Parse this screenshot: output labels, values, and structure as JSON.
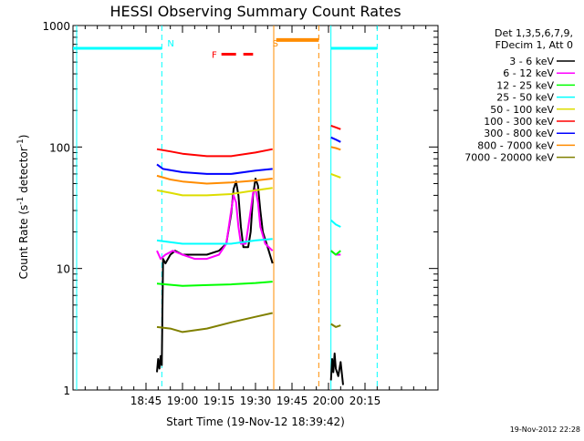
{
  "chart_data": {
    "type": "line",
    "title": "HESSI Observing Summary Count Rates",
    "xlabel": "Start Time (19-Nov-12 18:39:42)",
    "ylabel": "Count Rate (s⁻¹ detector⁻¹)",
    "ylabel_parts": {
      "main": "Count Rate (s",
      "sup1": "-1",
      "mid": " detector",
      "sup2": "-1",
      "end": ")"
    },
    "x_range_min": [
      -45,
      105
    ],
    "x_ticks": [
      {
        "t": -15,
        "label": "18:45"
      },
      {
        "t": 0,
        "label": "19:00"
      },
      {
        "t": 15,
        "label": "19:15"
      },
      {
        "t": 30,
        "label": "19:30"
      },
      {
        "t": 45,
        "label": "19:45"
      },
      {
        "t": 60,
        "label": "20:00"
      },
      {
        "t": 75,
        "label": "20:15"
      }
    ],
    "y_scale": "log",
    "ylim": [
      1,
      1000
    ],
    "y_ticks": [
      {
        "v": 1,
        "label": "1"
      },
      {
        "v": 10,
        "label": "10"
      },
      {
        "v": 100,
        "label": "100"
      },
      {
        "v": 1000,
        "label": "1000"
      }
    ],
    "legend_header": [
      "Det 1,3,5,6,7,9,",
      "FDecim 1, Att 0"
    ],
    "legend_position": "right",
    "timestamp": "19-Nov-2012 22:28",
    "annotations": [
      {
        "label": "N",
        "t": -8.5,
        "color": "#00ffff"
      },
      {
        "label": "F",
        "t": 12,
        "color": "#ff0000"
      },
      {
        "label": "S",
        "t": 37,
        "color": "#ff8c00"
      }
    ],
    "night_bars": [
      [
        -45,
        -8.5
      ],
      [
        61,
        80
      ]
    ],
    "flare_bar": [
      16,
      29
    ],
    "saa_bar": [
      38.5,
      56
    ],
    "saa_dashes": [
      56
    ],
    "night_dashes": [
      -8.5,
      80
    ],
    "solid_markers": [
      {
        "t": -43.5,
        "color": "#00ffff"
      },
      {
        "t": 37.5,
        "color": "#ff8c00"
      },
      {
        "t": 61,
        "color": "#00ffff"
      }
    ],
    "series": [
      {
        "name": "3 - 6 keV",
        "color": "#000000",
        "segments": [
          [
            [
              -10.5,
              1.4
            ],
            [
              -10,
              1.8
            ],
            [
              -9.5,
              1.5
            ],
            [
              -9,
              1.9
            ],
            [
              -8.5,
              1.6
            ],
            [
              -8,
              12
            ],
            [
              -7,
              11
            ],
            [
              -5,
              13
            ],
            [
              -3,
              14
            ],
            [
              0,
              13
            ],
            [
              5,
              13
            ],
            [
              10,
              13
            ],
            [
              15,
              14
            ],
            [
              18,
              16
            ],
            [
              20,
              28
            ],
            [
              21,
              45
            ],
            [
              22,
              52
            ],
            [
              23,
              40
            ],
            [
              24,
              22
            ],
            [
              25,
              15
            ],
            [
              27,
              15
            ],
            [
              28,
              20
            ],
            [
              29,
              40
            ],
            [
              30,
              55
            ],
            [
              31,
              48
            ],
            [
              32,
              30
            ],
            [
              33,
              20
            ],
            [
              35,
              15
            ],
            [
              37,
              11
            ]
          ],
          [
            [
              61,
              1.2
            ],
            [
              61.5,
              1.8
            ],
            [
              62,
              1.4
            ],
            [
              62.5,
              2.0
            ],
            [
              63,
              1.5
            ],
            [
              64,
              1.3
            ],
            [
              65,
              1.7
            ],
            [
              66,
              1.1
            ]
          ]
        ]
      },
      {
        "name": "6 - 12 keV",
        "color": "#ff00ff",
        "segments": [
          [
            [
              -10.5,
              14
            ],
            [
              -9,
              12
            ],
            [
              -7,
              13
            ],
            [
              -4,
              14
            ],
            [
              0,
              13
            ],
            [
              5,
              12
            ],
            [
              10,
              12
            ],
            [
              15,
              13
            ],
            [
              18,
              16
            ],
            [
              20,
              30
            ],
            [
              21,
              40
            ],
            [
              22,
              35
            ],
            [
              23,
              22
            ],
            [
              24,
              16
            ],
            [
              26,
              16
            ],
            [
              28,
              30
            ],
            [
              29,
              42
            ],
            [
              30,
              45
            ],
            [
              31,
              35
            ],
            [
              32,
              22
            ],
            [
              34,
              16
            ],
            [
              37,
              14
            ]
          ],
          [
            [
              61,
              14
            ],
            [
              63,
              13
            ],
            [
              65,
              13
            ]
          ]
        ]
      },
      {
        "name": "12 - 25 keV",
        "color": "#00ff00",
        "segments": [
          [
            [
              -10.5,
              7.5
            ],
            [
              0,
              7.2
            ],
            [
              10,
              7.3
            ],
            [
              20,
              7.4
            ],
            [
              30,
              7.6
            ],
            [
              37,
              7.8
            ]
          ],
          [
            [
              61,
              14
            ],
            [
              63,
              13
            ],
            [
              65,
              14
            ]
          ]
        ]
      },
      {
        "name": "25 - 50 keV",
        "color": "#00ffff",
        "segments": [
          [
            [
              -10.5,
              17
            ],
            [
              0,
              16
            ],
            [
              10,
              16
            ],
            [
              20,
              16
            ],
            [
              30,
              17
            ],
            [
              37,
              17.5
            ]
          ],
          [
            [
              61,
              25
            ],
            [
              63,
              23
            ],
            [
              65,
              22
            ]
          ]
        ]
      },
      {
        "name": "50 - 100 keV",
        "color": "#dddd00",
        "segments": [
          [
            [
              -10.5,
              44
            ],
            [
              -5,
              42
            ],
            [
              0,
              40
            ],
            [
              10,
              40
            ],
            [
              20,
              41
            ],
            [
              30,
              44
            ],
            [
              37,
              46
            ]
          ],
          [
            [
              61,
              60
            ],
            [
              63,
              58
            ],
            [
              65,
              56
            ]
          ]
        ]
      },
      {
        "name": "100 - 300 keV",
        "color": "#ff0000",
        "segments": [
          [
            [
              -10.5,
              96
            ],
            [
              -5,
              92
            ],
            [
              0,
              88
            ],
            [
              10,
              84
            ],
            [
              20,
              84
            ],
            [
              30,
              90
            ],
            [
              37,
              96
            ]
          ],
          [
            [
              61,
              150
            ],
            [
              63,
              145
            ],
            [
              65,
              140
            ]
          ]
        ]
      },
      {
        "name": "300 - 800 keV",
        "color": "#0000ff",
        "segments": [
          [
            [
              -10.5,
              72
            ],
            [
              -8,
              66
            ],
            [
              0,
              62
            ],
            [
              10,
              60
            ],
            [
              20,
              60
            ],
            [
              30,
              64
            ],
            [
              37,
              66
            ]
          ],
          [
            [
              61,
              120
            ],
            [
              63,
              115
            ],
            [
              65,
              110
            ]
          ]
        ]
      },
      {
        "name": "800 - 7000 keV",
        "color": "#ff8c00",
        "segments": [
          [
            [
              -10.5,
              58
            ],
            [
              -5,
              54
            ],
            [
              0,
              52
            ],
            [
              10,
              50
            ],
            [
              20,
              51
            ],
            [
              30,
              53
            ],
            [
              37,
              55
            ]
          ],
          [
            [
              61,
              100
            ],
            [
              63,
              98
            ],
            [
              65,
              95
            ]
          ]
        ]
      },
      {
        "name": "7000 - 20000 keV",
        "color": "#808000",
        "segments": [
          [
            [
              -10.5,
              3.3
            ],
            [
              -5,
              3.2
            ],
            [
              0,
              3.0
            ],
            [
              10,
              3.2
            ],
            [
              20,
              3.6
            ],
            [
              30,
              4.0
            ],
            [
              37,
              4.3
            ]
          ],
          [
            [
              61,
              3.5
            ],
            [
              63,
              3.3
            ],
            [
              65,
              3.4
            ]
          ]
        ]
      }
    ]
  }
}
